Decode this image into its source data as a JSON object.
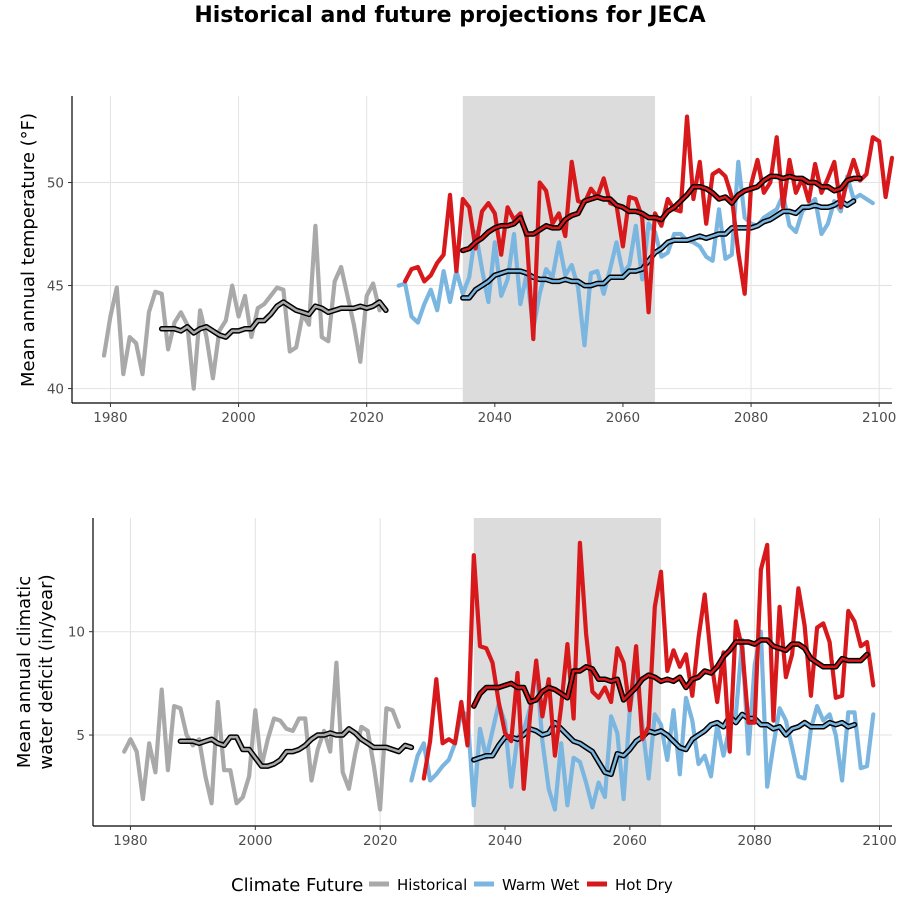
{
  "title": "Historical and future projections for JECA",
  "legend": {
    "title": "Climate Future",
    "entries": [
      {
        "name": "Historical",
        "color": "#a9a9a9"
      },
      {
        "name": "Warm Wet",
        "color": "#7bb6e0"
      },
      {
        "name": "Hot Dry",
        "color": "#d7191c"
      }
    ]
  },
  "chart_data": [
    {
      "type": "line",
      "ylabel": "Mean annual temperature (°F)",
      "xlabel": "",
      "xlim": [
        1974,
        2102
      ],
      "ylim": [
        39.3,
        54.2
      ],
      "xticks": [
        1980,
        2000,
        2020,
        2040,
        2060,
        2080,
        2100
      ],
      "yticks": [
        40,
        45,
        50
      ],
      "shaded_range": [
        2035,
        2065
      ],
      "grid": true,
      "series": [
        {
          "name": "Historical",
          "color": "#a9a9a9",
          "x_start": 1979,
          "values": [
            41.6,
            43.5,
            44.9,
            40.7,
            42.5,
            42.2,
            40.7,
            43.7,
            44.7,
            44.6,
            41.9,
            43.2,
            43.7,
            43.1,
            40.0,
            43.8,
            42.5,
            40.5,
            42.8,
            43.3,
            45.0,
            43.5,
            44.5,
            42.5,
            43.9,
            44.1,
            44.5,
            44.9,
            44.8,
            41.8,
            42.0,
            43.6,
            43.1,
            47.9,
            42.5,
            42.3,
            45.2,
            45.9,
            44.5,
            43.1,
            41.3,
            44.5,
            45.1,
            43.8
          ]
        },
        {
          "name": "Historical average",
          "color": "#a9a9a9",
          "smoothed": true,
          "x_start": 1988,
          "values": [
            42.9,
            42.9,
            42.9,
            42.8,
            43.0,
            42.7,
            42.9,
            43.0,
            42.8,
            42.6,
            42.5,
            42.8,
            42.8,
            42.9,
            42.9,
            43.3,
            43.3,
            43.6,
            44.0,
            44.2,
            44.0,
            43.8,
            43.7,
            43.6,
            44.0,
            43.9,
            43.7,
            43.8,
            43.9,
            43.9,
            43.9,
            44.0,
            43.9,
            44.0,
            44.2,
            43.8
          ]
        },
        {
          "name": "Warm Wet",
          "color": "#7bb6e0",
          "x_start": 2025,
          "values": [
            45.0,
            45.1,
            43.5,
            43.2,
            44.1,
            44.8,
            43.8,
            45.7,
            44.2,
            45.7,
            44.6,
            45.4,
            47.6,
            45.8,
            44.2,
            47.1,
            44.5,
            45.3,
            47.5,
            44.1,
            45.6,
            42.9,
            44.6,
            45.8,
            45.4,
            47.1,
            45.5,
            46.0,
            44.9,
            42.1,
            45.6,
            45.7,
            44.6,
            45.8,
            47.1,
            45.6,
            46.0,
            47.9,
            45.3,
            48.0,
            47.6,
            46.4,
            46.6,
            47.5,
            47.5,
            47.2,
            47.1,
            46.9,
            46.4,
            46.2,
            48.7,
            46.3,
            46.5,
            51.0,
            48.3,
            48.0,
            47.9,
            48.3,
            48.5,
            48.7,
            49.4,
            47.9,
            47.6,
            48.6,
            48.9,
            49.2,
            47.5,
            48.0,
            49.1,
            48.6,
            50.3,
            49.2,
            49.4,
            49.2,
            49.0
          ]
        },
        {
          "name": "Warm Wet average",
          "color": "#7bb6e0",
          "smoothed": true,
          "x_start": 2035,
          "values": [
            44.4,
            44.4,
            44.8,
            45.0,
            45.2,
            45.5,
            45.6,
            45.7,
            45.7,
            45.7,
            45.6,
            45.4,
            45.3,
            45.3,
            45.2,
            45.2,
            45.3,
            45.2,
            45.2,
            45.0,
            45.0,
            45.1,
            45.1,
            45.4,
            45.4,
            45.4,
            45.7,
            45.7,
            45.8,
            46.2,
            46.6,
            46.8,
            47.1,
            47.2,
            47.2,
            47.2,
            47.3,
            47.4,
            47.3,
            47.4,
            47.5,
            47.5,
            47.8,
            47.8,
            47.8,
            47.8,
            47.9,
            48.1,
            48.2,
            48.4,
            48.6,
            48.6,
            48.5,
            48.8,
            48.8,
            48.9,
            48.8,
            48.8,
            48.9,
            49.1,
            48.9,
            49.1
          ]
        },
        {
          "name": "Hot Dry",
          "color": "#d7191c",
          "x_start": 2026,
          "values": [
            45.2,
            45.8,
            45.9,
            45.2,
            45.5,
            46.1,
            46.5,
            49.4,
            45.7,
            49.2,
            48.8,
            46.8,
            48.6,
            49.0,
            48.5,
            46.5,
            48.8,
            48.2,
            48.5,
            47.3,
            42.4,
            50.0,
            49.6,
            48.0,
            48.5,
            47.4,
            51.0,
            49.1,
            49.0,
            49.7,
            49.3,
            50.2,
            49.0,
            48.9,
            46.9,
            49.3,
            49.2,
            48.3,
            43.7,
            48.5,
            47.9,
            49.2,
            48.7,
            48.6,
            53.2,
            49.2,
            51.0,
            48.0,
            50.4,
            50.6,
            50.3,
            49.3,
            46.6,
            44.6,
            49.9,
            51.1,
            49.5,
            50.0,
            52.2,
            48.8,
            51.1,
            49.5,
            50.2,
            49.1,
            50.9,
            49.5,
            50.2,
            51.0,
            48.8,
            50.1,
            51.1,
            50.1,
            50.4,
            52.2,
            52.0,
            49.3,
            51.2
          ]
        },
        {
          "name": "Hot Dry average",
          "color": "#d7191c",
          "smoothed": true,
          "x_start": 2035,
          "values": [
            46.7,
            46.8,
            47.1,
            47.3,
            47.6,
            47.8,
            47.9,
            47.9,
            48.0,
            48.3,
            47.5,
            47.5,
            47.7,
            47.9,
            47.8,
            47.8,
            48.2,
            48.4,
            48.5,
            49.1,
            49.2,
            49.3,
            49.2,
            49.2,
            48.9,
            48.8,
            48.6,
            48.6,
            48.5,
            48.3,
            48.3,
            48.2,
            48.6,
            48.8,
            49.1,
            49.4,
            49.8,
            49.8,
            49.7,
            49.5,
            49.2,
            49.3,
            49.0,
            49.4,
            49.6,
            49.7,
            49.8,
            50.1,
            50.3,
            50.3,
            50.2,
            50.3,
            50.2,
            50.2,
            50.0,
            50.0,
            49.8,
            49.8,
            49.6,
            49.7,
            50.1,
            50.2,
            50.2
          ]
        }
      ]
    },
    {
      "type": "line",
      "ylabel": "Mean annual climatic water deficit (in/year)",
      "xlabel": "",
      "xlim": [
        1974,
        2102
      ],
      "ylim": [
        0.6,
        15.5
      ],
      "xticks": [
        1980,
        2000,
        2020,
        2040,
        2060,
        2080,
        2100
      ],
      "yticks": [
        5,
        10
      ],
      "shaded_range": [
        2035,
        2065
      ],
      "grid": true,
      "series": [
        {
          "name": "Historical",
          "color": "#a9a9a9",
          "x_start": 1979,
          "values": [
            4.2,
            4.8,
            4.2,
            1.9,
            4.6,
            3.2,
            7.2,
            3.3,
            6.4,
            6.3,
            5.0,
            4.5,
            4.8,
            3.0,
            1.7,
            6.6,
            3.3,
            3.3,
            1.7,
            2.0,
            3.0,
            6.2,
            3.5,
            4.8,
            5.8,
            5.7,
            5.3,
            5.2,
            5.8,
            5.8,
            2.8,
            4.3,
            5.2,
            4.2,
            8.5,
            3.2,
            2.4,
            4.1,
            5.4,
            5.2,
            3.5,
            1.4,
            6.3,
            6.2,
            5.4
          ]
        },
        {
          "name": "Historical average",
          "color": "#a9a9a9",
          "smoothed": true,
          "x_start": 1988,
          "values": [
            4.7,
            4.7,
            4.7,
            4.6,
            4.7,
            4.8,
            4.6,
            4.5,
            4.9,
            4.9,
            4.3,
            4.3,
            3.9,
            3.5,
            3.5,
            3.6,
            3.8,
            4.2,
            4.2,
            4.3,
            4.5,
            4.8,
            5.0,
            5.0,
            5.1,
            5.0,
            5.0,
            5.3,
            5.1,
            4.8,
            4.6,
            4.4,
            4.4,
            4.4,
            4.3,
            4.2,
            4.5,
            4.4
          ]
        },
        {
          "name": "Warm Wet",
          "color": "#7bb6e0",
          "x_start": 2025,
          "values": [
            2.8,
            4.0,
            4.6,
            2.8,
            3.1,
            3.5,
            3.8,
            4.6,
            6.1,
            6.0,
            1.6,
            5.3,
            3.9,
            5.2,
            6.5,
            5.6,
            2.5,
            4.9,
            5.2,
            6.3,
            8.4,
            4.7,
            2.4,
            1.4,
            4.6,
            1.6,
            3.9,
            3.7,
            2.7,
            1.5,
            2.7,
            2.0,
            5.9,
            5.1,
            1.9,
            6.2,
            8.1,
            5.5,
            2.9,
            6.0,
            5.5,
            3.8,
            6.2,
            3.1,
            6.8,
            5.7,
            3.6,
            4.0,
            3.0,
            5.5,
            4.0,
            5.4,
            6.0,
            9.6,
            4.1,
            8.4,
            10.0,
            2.5,
            4.5,
            6.3,
            5.7,
            4.4,
            3.0,
            2.9,
            5.3,
            6.4,
            5.7,
            6.0,
            5.0,
            2.8,
            6.1,
            6.1,
            3.4,
            3.5,
            6.0
          ]
        },
        {
          "name": "Warm Wet average",
          "color": "#7bb6e0",
          "smoothed": true,
          "x_start": 2035,
          "values": [
            3.8,
            3.9,
            4.0,
            4.0,
            4.5,
            4.9,
            4.9,
            4.8,
            5.0,
            5.3,
            5.2,
            5.0,
            5.1,
            5.6,
            5.3,
            5.0,
            4.7,
            4.6,
            4.4,
            4.2,
            3.7,
            3.2,
            3.1,
            4.1,
            4.0,
            4.3,
            4.7,
            4.9,
            5.2,
            5.1,
            5.2,
            5.0,
            4.7,
            4.4,
            4.3,
            4.8,
            5.0,
            5.2,
            5.5,
            5.6,
            5.4,
            5.9,
            5.6,
            6.0,
            5.8,
            5.8,
            5.5,
            5.5,
            5.3,
            5.4,
            5.0,
            5.3,
            5.4,
            5.6,
            5.4,
            5.4,
            5.4,
            5.6,
            5.5,
            5.6,
            5.4,
            5.5
          ]
        },
        {
          "name": "Hot Dry",
          "color": "#d7191c",
          "x_start": 2027,
          "values": [
            2.9,
            4.7,
            7.7,
            4.6,
            4.8,
            4.6,
            6.6,
            4.5,
            13.7,
            9.3,
            9.2,
            8.5,
            6.6,
            5.1,
            4.7,
            8.0,
            2.4,
            5.9,
            8.6,
            5.9,
            7.7,
            4.0,
            6.4,
            9.4,
            5.8,
            14.3,
            9.9,
            7.1,
            6.8,
            7.3,
            6.6,
            9.2,
            8.5,
            6.2,
            9.3,
            4.8,
            5.4,
            11.2,
            12.9,
            8.1,
            9.1,
            8.3,
            8.9,
            6.9,
            9.7,
            11.8,
            8.7,
            6.6,
            9.0,
            4.2,
            10.5,
            9.2,
            5.6,
            5.6,
            13.0,
            14.2,
            5.7,
            11.2,
            7.8,
            8.9,
            12.1,
            10.3,
            6.9,
            10.2,
            10.4,
            9.5,
            6.8,
            6.9,
            11.0,
            10.5,
            9.3,
            9.5,
            7.4
          ]
        },
        {
          "name": "Hot Dry average",
          "color": "#d7191c",
          "smoothed": true,
          "x_start": 2035,
          "values": [
            6.4,
            7.0,
            7.3,
            7.3,
            7.3,
            7.4,
            7.5,
            7.3,
            7.3,
            6.6,
            6.7,
            7.1,
            7.3,
            7.2,
            7.0,
            6.8,
            8.1,
            8.1,
            8.3,
            8.2,
            7.7,
            7.7,
            7.6,
            7.7,
            6.7,
            7.0,
            7.3,
            7.7,
            7.9,
            7.8,
            7.6,
            7.7,
            7.6,
            7.8,
            7.3,
            7.7,
            7.8,
            8.1,
            8.0,
            8.3,
            8.8,
            9.1,
            9.5,
            9.5,
            9.5,
            9.4,
            9.6,
            9.6,
            9.3,
            9.2,
            9.1,
            9.4,
            9.4,
            9.2,
            8.7,
            8.5,
            8.3,
            8.3,
            8.3,
            8.7,
            8.6,
            8.6,
            8.6,
            8.9
          ]
        }
      ]
    }
  ]
}
